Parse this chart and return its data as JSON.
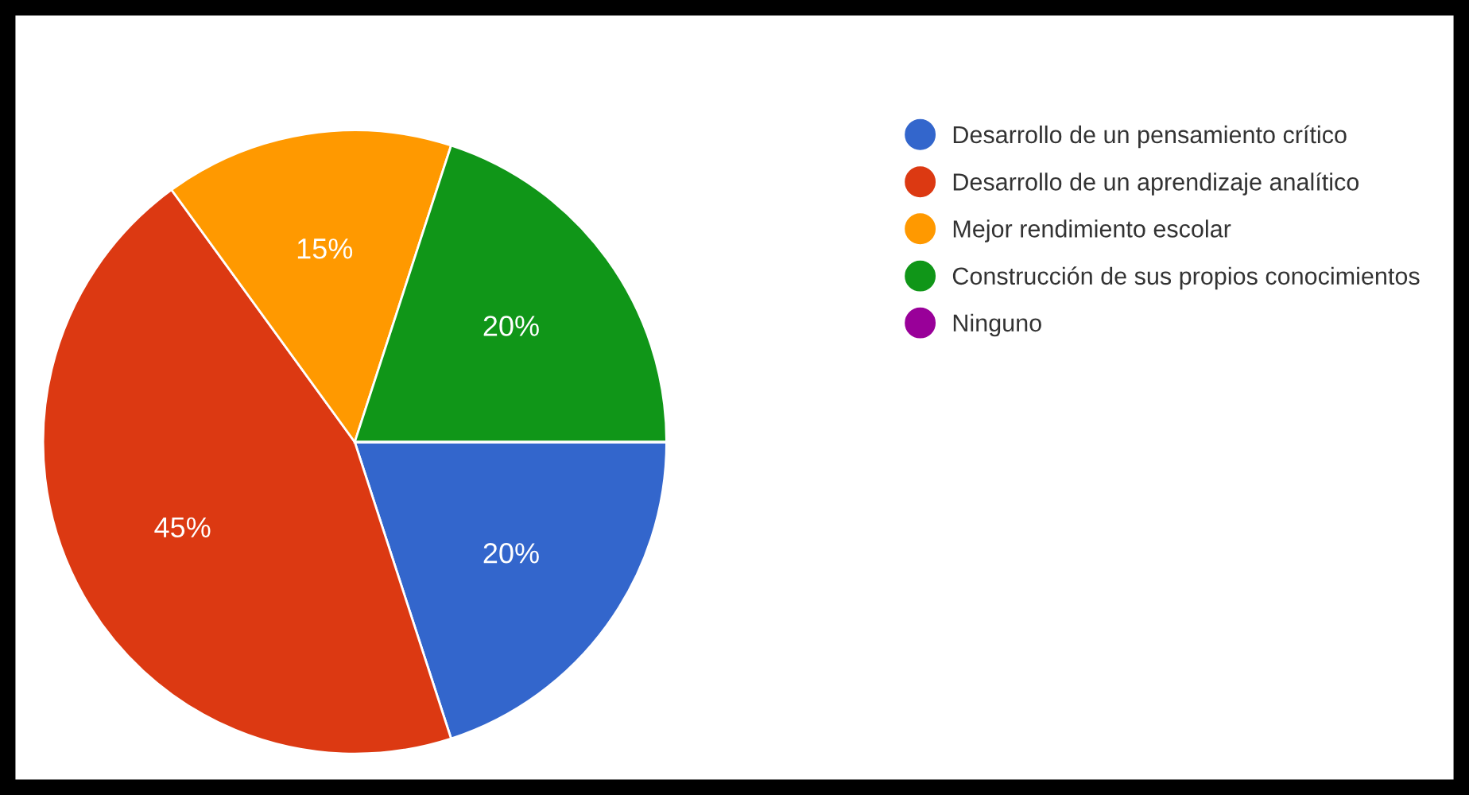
{
  "chart_data": {
    "type": "pie",
    "categories": [
      "Desarrollo de un pensamiento crítico",
      "Desarrollo de un aprendizaje analítico",
      "Mejor rendimiento escolar",
      "Construcción de sus propios conocimientos",
      "Ninguno"
    ],
    "values": [
      20,
      45,
      15,
      20,
      0
    ],
    "colors": [
      "#3366cc",
      "#dc3912",
      "#ff9900",
      "#109618",
      "#990099"
    ],
    "value_labels": [
      "20%",
      "45%",
      "15%",
      "20%",
      null
    ],
    "legend": "right"
  }
}
